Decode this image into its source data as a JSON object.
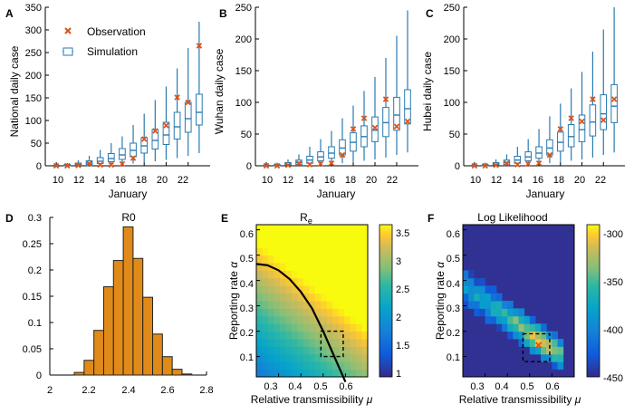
{
  "colors": {
    "box": "#2a7ab0",
    "obs": "#d9541c",
    "bar": "#e08a1a",
    "bar_edge": "#222222"
  },
  "chart_data": [
    {
      "panel": "A",
      "type": "box",
      "ylabel": "National daily case",
      "xlabel": "January",
      "ylim": [
        0,
        350
      ],
      "yticks": [
        "0",
        "50",
        "100",
        "150",
        "200",
        "250",
        "300",
        "350"
      ],
      "xticks": [
        "10",
        "12",
        "14",
        "16",
        "18",
        "20",
        "22"
      ],
      "legend": {
        "obs_label": "Observation",
        "sim_label": "Simulation",
        "placement": "top-left"
      },
      "x": [
        10,
        11,
        12,
        13,
        14,
        15,
        16,
        17,
        18,
        19,
        20,
        21,
        22,
        23
      ],
      "obs": [
        0,
        0,
        1,
        5,
        2,
        2,
        4,
        17,
        59,
        77,
        89,
        151,
        140,
        265
      ],
      "sim": [
        {
          "lo": 0,
          "q1": 0,
          "med": 0,
          "q3": 1,
          "hi": 3
        },
        {
          "lo": 0,
          "q1": 0,
          "med": 1,
          "q3": 3,
          "hi": 6
        },
        {
          "lo": 0,
          "q1": 1,
          "med": 3,
          "q3": 6,
          "hi": 12
        },
        {
          "lo": 0,
          "q1": 3,
          "med": 6,
          "q3": 11,
          "hi": 22
        },
        {
          "lo": 1,
          "q1": 5,
          "med": 10,
          "q3": 18,
          "hi": 35
        },
        {
          "lo": 2,
          "q1": 9,
          "med": 16,
          "q3": 27,
          "hi": 50
        },
        {
          "lo": 3,
          "q1": 14,
          "med": 24,
          "q3": 38,
          "hi": 65
        },
        {
          "lo": 5,
          "q1": 20,
          "med": 34,
          "q3": 50,
          "hi": 90
        },
        {
          "lo": 7,
          "q1": 28,
          "med": 44,
          "q3": 62,
          "hi": 115
        },
        {
          "lo": 10,
          "q1": 37,
          "med": 56,
          "q3": 80,
          "hi": 145
        },
        {
          "lo": 13,
          "q1": 47,
          "med": 68,
          "q3": 96,
          "hi": 175
        },
        {
          "lo": 17,
          "q1": 59,
          "med": 86,
          "q3": 118,
          "hi": 215
        },
        {
          "lo": 22,
          "q1": 74,
          "med": 104,
          "q3": 140,
          "hi": 260
        },
        {
          "lo": 28,
          "q1": 90,
          "med": 118,
          "q3": 158,
          "hi": 318
        }
      ]
    },
    {
      "panel": "B",
      "type": "box",
      "ylabel": "Wuhan daily case",
      "xlabel": "January",
      "ylim": [
        0,
        250
      ],
      "yticks": [
        "0",
        "50",
        "100",
        "150",
        "200",
        "250"
      ],
      "xticks": [
        "10",
        "12",
        "14",
        "16",
        "18",
        "20",
        "22"
      ],
      "x": [
        10,
        11,
        12,
        13,
        14,
        15,
        16,
        17,
        18,
        19,
        20,
        21,
        22,
        23
      ],
      "obs": [
        0,
        0,
        1,
        4,
        2,
        3,
        4,
        17,
        58,
        75,
        60,
        105,
        62,
        70
      ],
      "sim": [
        {
          "lo": 0,
          "q1": 0,
          "med": 0,
          "q3": 1,
          "hi": 2
        },
        {
          "lo": 0,
          "q1": 0,
          "med": 1,
          "q3": 2,
          "hi": 5
        },
        {
          "lo": 0,
          "q1": 1,
          "med": 2,
          "q3": 5,
          "hi": 10
        },
        {
          "lo": 0,
          "q1": 2,
          "med": 5,
          "q3": 9,
          "hi": 18
        },
        {
          "lo": 1,
          "q1": 4,
          "med": 9,
          "q3": 15,
          "hi": 30
        },
        {
          "lo": 2,
          "q1": 8,
          "med": 14,
          "q3": 22,
          "hi": 42
        },
        {
          "lo": 3,
          "q1": 12,
          "med": 20,
          "q3": 30,
          "hi": 55
        },
        {
          "lo": 4,
          "q1": 17,
          "med": 28,
          "q3": 41,
          "hi": 75
        },
        {
          "lo": 6,
          "q1": 23,
          "med": 37,
          "q3": 52,
          "hi": 95
        },
        {
          "lo": 8,
          "q1": 30,
          "med": 46,
          "q3": 63,
          "hi": 118
        },
        {
          "lo": 10,
          "q1": 38,
          "med": 56,
          "q3": 77,
          "hi": 140
        },
        {
          "lo": 13,
          "q1": 46,
          "med": 68,
          "q3": 92,
          "hi": 170
        },
        {
          "lo": 17,
          "q1": 56,
          "med": 80,
          "q3": 108,
          "hi": 205
        },
        {
          "lo": 21,
          "q1": 66,
          "med": 90,
          "q3": 120,
          "hi": 245
        }
      ]
    },
    {
      "panel": "C",
      "type": "box",
      "ylabel": "Hubei daily case",
      "xlabel": "January",
      "ylim": [
        0,
        250
      ],
      "yticks": [
        "0",
        "50",
        "100",
        "150",
        "200",
        "250"
      ],
      "xticks": [
        "10",
        "12",
        "14",
        "16",
        "18",
        "20",
        "22"
      ],
      "x": [
        10,
        11,
        12,
        13,
        14,
        15,
        16,
        17,
        18,
        19,
        20,
        21,
        22,
        23
      ],
      "obs": [
        0,
        0,
        1,
        4,
        2,
        3,
        4,
        17,
        58,
        75,
        70,
        105,
        72,
        105
      ],
      "sim": [
        {
          "lo": 0,
          "q1": 0,
          "med": 0,
          "q3": 1,
          "hi": 2
        },
        {
          "lo": 0,
          "q1": 0,
          "med": 1,
          "q3": 2,
          "hi": 5
        },
        {
          "lo": 0,
          "q1": 1,
          "med": 2,
          "q3": 5,
          "hi": 10
        },
        {
          "lo": 0,
          "q1": 2,
          "med": 5,
          "q3": 9,
          "hi": 18
        },
        {
          "lo": 1,
          "q1": 4,
          "med": 9,
          "q3": 15,
          "hi": 30
        },
        {
          "lo": 2,
          "q1": 8,
          "med": 14,
          "q3": 22,
          "hi": 42
        },
        {
          "lo": 3,
          "q1": 12,
          "med": 20,
          "q3": 30,
          "hi": 58
        },
        {
          "lo": 4,
          "q1": 17,
          "med": 28,
          "q3": 41,
          "hi": 78
        },
        {
          "lo": 6,
          "q1": 23,
          "med": 37,
          "q3": 53,
          "hi": 98
        },
        {
          "lo": 8,
          "q1": 30,
          "med": 46,
          "q3": 65,
          "hi": 122
        },
        {
          "lo": 10,
          "q1": 38,
          "med": 57,
          "q3": 80,
          "hi": 148
        },
        {
          "lo": 13,
          "q1": 47,
          "med": 69,
          "q3": 96,
          "hi": 180
        },
        {
          "lo": 17,
          "q1": 57,
          "med": 82,
          "q3": 112,
          "hi": 215
        },
        {
          "lo": 21,
          "q1": 68,
          "med": 94,
          "q3": 128,
          "hi": 250
        }
      ]
    },
    {
      "panel": "D",
      "type": "bar",
      "title": "R0",
      "xlim": [
        2,
        2.8
      ],
      "ylim": [
        0,
        0.3
      ],
      "xticks": [
        "2",
        "2.2",
        "2.4",
        "2.6",
        "2.8"
      ],
      "yticks": [
        "0",
        "0.05",
        "0.1",
        "0.15",
        "0.2",
        "0.25",
        "0.3"
      ],
      "bin_centers": [
        2.1,
        2.15,
        2.2,
        2.25,
        2.3,
        2.35,
        2.4,
        2.45,
        2.5,
        2.55,
        2.6,
        2.65,
        2.7,
        2.75
      ],
      "values": [
        0.0,
        0.005,
        0.028,
        0.085,
        0.168,
        0.218,
        0.282,
        0.222,
        0.148,
        0.078,
        0.035,
        0.011,
        0.002,
        0.0
      ]
    },
    {
      "panel": "E",
      "type": "heatmap",
      "title": "R",
      "title_sub": "e",
      "xlabel": "Relative transmissibility",
      "xlabel_symbol": "μ",
      "ylabel": "Reporting rate",
      "ylabel_symbol": "α",
      "xlim": [
        0.2,
        0.7
      ],
      "ylim": [
        0.02,
        0.62
      ],
      "xticks": [
        "0.3",
        "0.4",
        "0.5",
        "0.6"
      ],
      "yticks": [
        "0.1",
        "0.2",
        "0.3",
        "0.4",
        "0.5",
        "0.6"
      ],
      "colorbar": {
        "range": [
          1,
          3.7
        ],
        "ticks": [
          "1",
          "1.5",
          "2",
          "2.5",
          "3",
          "3.5"
        ]
      },
      "mu": [
        0.225,
        0.25,
        0.275,
        0.3,
        0.325,
        0.35,
        0.375,
        0.4,
        0.425,
        0.45,
        0.475,
        0.5,
        0.525,
        0.55,
        0.575,
        0.6,
        0.625,
        0.65,
        0.675
      ],
      "alpha": [
        0.04,
        0.07,
        0.1,
        0.13,
        0.16,
        0.19,
        0.22,
        0.25,
        0.28,
        0.31,
        0.34,
        0.37,
        0.4,
        0.43,
        0.46,
        0.49,
        0.52,
        0.55,
        0.58,
        0.61
      ],
      "contour": {
        "level": 2.0,
        "mu": [
          0.2,
          0.25,
          0.3,
          0.35,
          0.4,
          0.45,
          0.5,
          0.55,
          0.6
        ],
        "alpha": [
          0.465,
          0.46,
          0.44,
          0.405,
          0.355,
          0.29,
          0.2,
          0.1,
          0.0
        ]
      },
      "box": {
        "mu": [
          0.49,
          0.59
        ],
        "alpha": [
          0.1,
          0.2
        ]
      }
    },
    {
      "panel": "F",
      "type": "heatmap",
      "title": "Log Likelihood",
      "xlabel": "Relative transmissibility",
      "xlabel_symbol": "μ",
      "ylabel": "Reporting rate",
      "ylabel_symbol": "α",
      "xlim": [
        0.2,
        0.7
      ],
      "ylim": [
        0.02,
        0.62
      ],
      "xticks": [
        "0.3",
        "0.4",
        "0.5",
        "0.6"
      ],
      "yticks": [
        "0.1",
        "0.2",
        "0.3",
        "0.4",
        "0.5",
        "0.6"
      ],
      "colorbar": {
        "range": [
          -450,
          -290
        ],
        "ticks": [
          "-300",
          "-350",
          "-400",
          "-450"
        ]
      },
      "best": {
        "mu": 0.54,
        "alpha": 0.145
      },
      "box": {
        "mu": [
          0.47,
          0.59
        ],
        "alpha": [
          0.08,
          0.19
        ]
      }
    }
  ]
}
